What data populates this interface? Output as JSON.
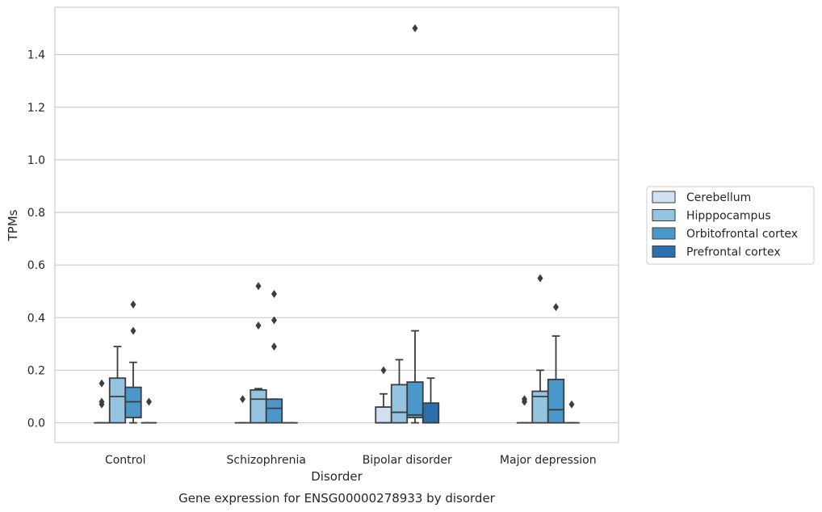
{
  "chart_data": {
    "type": "boxplot",
    "xlabel": "Disorder",
    "ylabel": "TPMs",
    "caption": "Gene expression for ENSG00000278933 by disorder",
    "ylim": [
      -0.075,
      1.58
    ],
    "yticks": [
      "0.0",
      "0.2",
      "0.4",
      "0.6",
      "0.8",
      "1.0",
      "1.2",
      "1.4"
    ],
    "grid": "horizontal",
    "legend_placement": "right",
    "categories": [
      "Control",
      "Schizophrenia",
      "Bipolar disorder",
      "Major depression"
    ],
    "series": [
      {
        "name": "Cerebellum",
        "color": "#d0e1f2",
        "boxes": [
          {
            "q1": 0,
            "median": 0,
            "q3": 0,
            "whisker_low": 0,
            "whisker_high": 0,
            "outliers": [
              0.07,
              0.08,
              0.15
            ]
          },
          {
            "q1": 0,
            "median": 0,
            "q3": 0,
            "whisker_low": 0,
            "whisker_high": 0,
            "outliers": [
              0.09
            ]
          },
          {
            "q1": 0,
            "median": 0,
            "q3": 0.06,
            "whisker_low": 0,
            "whisker_high": 0.11,
            "outliers": [
              0.2
            ]
          },
          {
            "q1": 0,
            "median": 0,
            "q3": 0,
            "whisker_low": 0,
            "whisker_high": 0,
            "outliers": [
              0.08,
              0.09
            ]
          }
        ]
      },
      {
        "name": "Hipppocampus",
        "color": "#94c4df",
        "boxes": [
          {
            "q1": 0,
            "median": 0.1,
            "q3": 0.17,
            "whisker_low": 0,
            "whisker_high": 0.29,
            "outliers": []
          },
          {
            "q1": 0,
            "median": 0.09,
            "q3": 0.125,
            "whisker_low": 0,
            "whisker_high": 0.13,
            "outliers": [
              0.37,
              0.52
            ]
          },
          {
            "q1": 0,
            "median": 0.04,
            "q3": 0.145,
            "whisker_low": 0,
            "whisker_high": 0.24,
            "outliers": []
          },
          {
            "q1": 0,
            "median": 0.1,
            "q3": 0.12,
            "whisker_low": 0,
            "whisker_high": 0.2,
            "outliers": [
              0.55
            ]
          }
        ]
      },
      {
        "name": "Orbitofrontal cortex",
        "color": "#4a98c9",
        "boxes": [
          {
            "q1": 0.02,
            "median": 0.08,
            "q3": 0.135,
            "whisker_low": 0,
            "whisker_high": 0.23,
            "outliers": [
              0.35,
              0.45
            ]
          },
          {
            "q1": 0,
            "median": 0.055,
            "q3": 0.09,
            "whisker_low": 0,
            "whisker_high": 0.09,
            "outliers": [
              0.29,
              0.39,
              0.49
            ]
          },
          {
            "q1": 0.02,
            "median": 0.03,
            "q3": 0.155,
            "whisker_low": 0,
            "whisker_high": 0.35,
            "outliers": [
              1.5
            ]
          },
          {
            "q1": 0,
            "median": 0.05,
            "q3": 0.165,
            "whisker_low": 0,
            "whisker_high": 0.33,
            "outliers": [
              0.44
            ]
          }
        ]
      },
      {
        "name": "Prefrontal cortex",
        "color": "#2b6fad",
        "boxes": [
          {
            "q1": 0,
            "median": 0,
            "q3": 0,
            "whisker_low": 0,
            "whisker_high": 0,
            "outliers": [
              0.08
            ]
          },
          {
            "q1": 0,
            "median": 0,
            "q3": 0,
            "whisker_low": 0,
            "whisker_high": 0,
            "outliers": []
          },
          {
            "q1": 0,
            "median": 0,
            "q3": 0.075,
            "whisker_low": 0,
            "whisker_high": 0.17,
            "outliers": []
          },
          {
            "q1": 0,
            "median": 0,
            "q3": 0,
            "whisker_low": 0,
            "whisker_high": 0,
            "outliers": [
              0.07
            ]
          }
        ]
      }
    ]
  }
}
